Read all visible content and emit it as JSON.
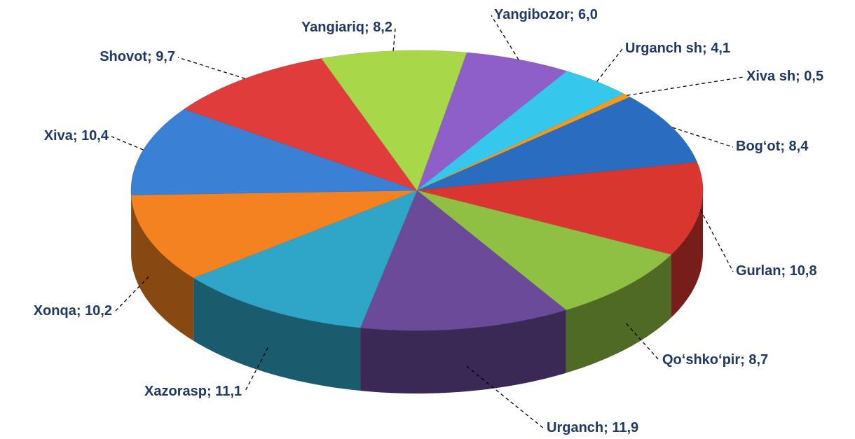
{
  "chart_data": {
    "type": "pie3d",
    "label_separator": "; ",
    "categories": [
      "Yangibozor",
      "Urganch sh",
      "Xiva sh",
      "Bog‘ot",
      "Gurlan",
      "Qo‘shko‘pir",
      "Urganch",
      "Xazorasp",
      "Xonqa",
      "Xiva",
      "Shovot",
      "Yangiariq"
    ],
    "values": [
      6.0,
      4.1,
      0.5,
      8.4,
      10.8,
      8.7,
      11.9,
      11.1,
      10.2,
      10.4,
      9.7,
      8.2
    ],
    "value_labels": [
      "6,0",
      "4,1",
      "0,5",
      "8,4",
      "10,8",
      "8,7",
      "11,9",
      "11,1",
      "10,2",
      "10,4",
      "9,7",
      "8,2"
    ],
    "colors": [
      "#8e5fc8",
      "#35c8ec",
      "#f39a1e",
      "#2a6cc0",
      "#d9362f",
      "#8fc043",
      "#6b4a9a",
      "#2fa6c8",
      "#f58220",
      "#3a80d4",
      "#e03c3c",
      "#a8d84a"
    ]
  }
}
